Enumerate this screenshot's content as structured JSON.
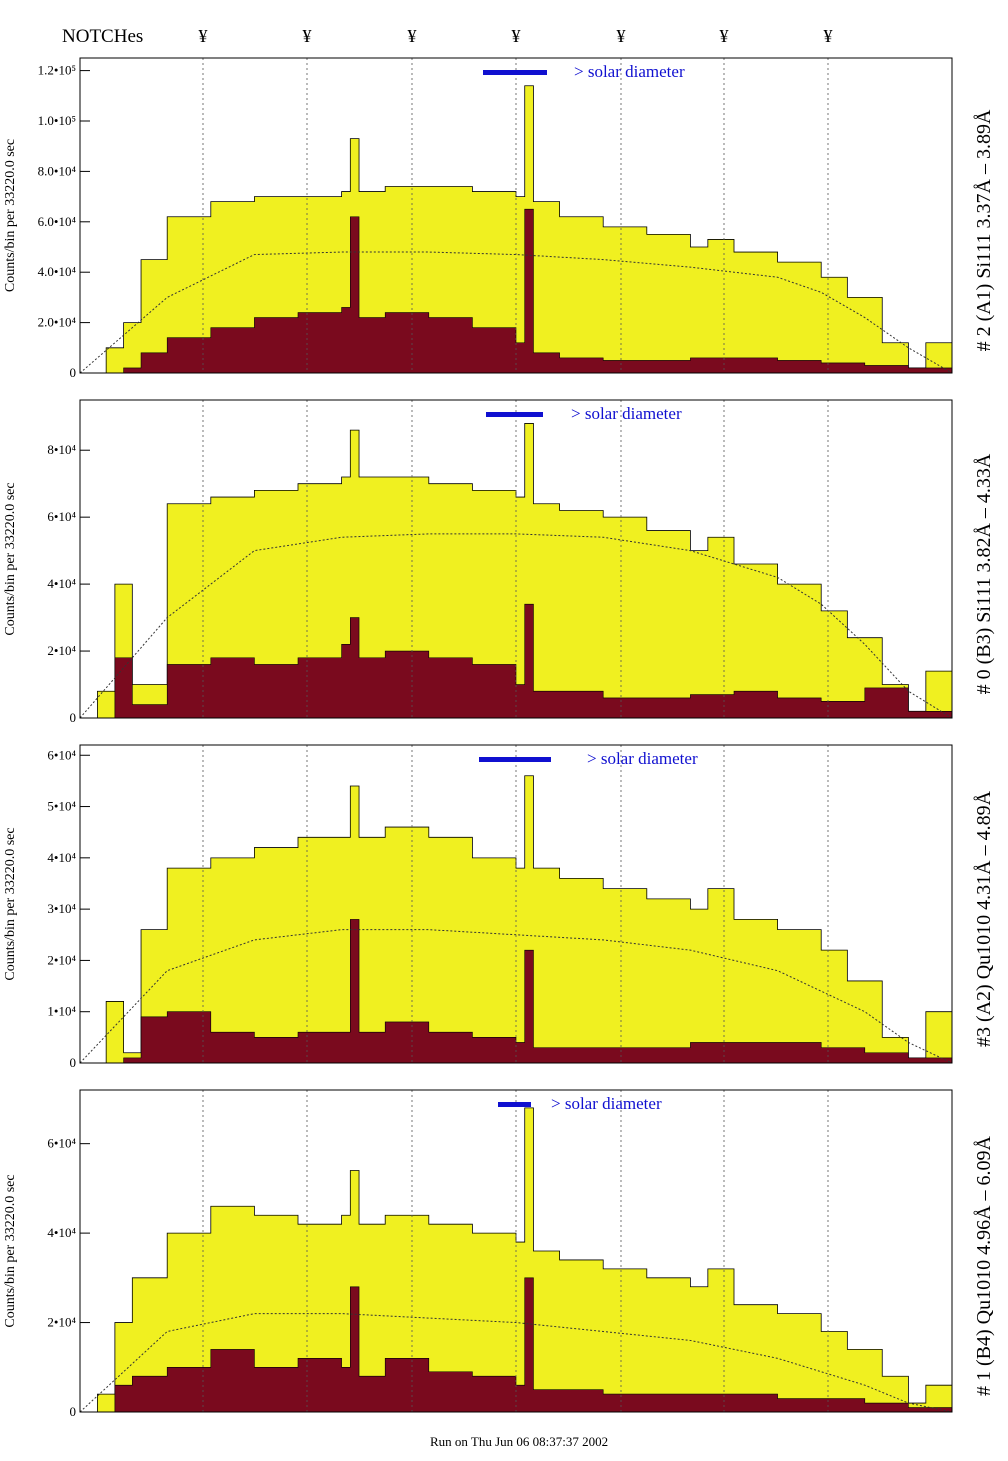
{
  "header": {
    "notch_label": "NOTCHes",
    "notch_symbol": "¥",
    "notch_count": 7
  },
  "footer": {
    "run_text": "Run on Thu Jun 06 08:37:37 2002"
  },
  "colors": {
    "yellow_fill": "#f0f020",
    "dark_fill": "#7a0a1e",
    "solar_bar": "#1010d0",
    "frame": "#000000"
  },
  "chart_data": [
    {
      "type": "area",
      "panel_label": "# 2 (A1) Si111  3.37Å – 3.89Å",
      "ylabel": "Counts/bin per  33220.0 sec",
      "solar_text": "> solar diameter",
      "ylim": [
        0,
        125000
      ],
      "y_ticks": [
        0,
        20000,
        40000,
        60000,
        80000,
        100000,
        120000
      ],
      "y_tick_labels": [
        "0",
        "2.0•10⁴",
        "4.0•10⁴",
        "6.0•10⁴",
        "8.0•10⁴",
        "1.0•10⁵",
        "1.2•10⁵"
      ],
      "series": [
        {
          "name": "total",
          "x": [
            0,
            0.03,
            0.05,
            0.07,
            0.1,
            0.15,
            0.2,
            0.25,
            0.3,
            0.31,
            0.32,
            0.35,
            0.4,
            0.45,
            0.5,
            0.51,
            0.52,
            0.55,
            0.6,
            0.65,
            0.7,
            0.72,
            0.75,
            0.8,
            0.85,
            0.88,
            0.92,
            0.95,
            0.97,
            1.0
          ],
          "values": [
            0,
            10000,
            20000,
            45000,
            62000,
            68000,
            70000,
            70000,
            72000,
            93000,
            72000,
            74000,
            74000,
            72000,
            70000,
            114000,
            68000,
            62000,
            58000,
            55000,
            50000,
            53000,
            48000,
            44000,
            38000,
            30000,
            12000,
            2000,
            12000,
            0
          ]
        },
        {
          "name": "counts",
          "x": [
            0,
            0.05,
            0.07,
            0.1,
            0.15,
            0.2,
            0.25,
            0.3,
            0.31,
            0.32,
            0.35,
            0.4,
            0.45,
            0.5,
            0.51,
            0.52,
            0.55,
            0.6,
            0.65,
            0.7,
            0.75,
            0.8,
            0.85,
            0.9,
            0.95,
            1.0
          ],
          "values": [
            0,
            2000,
            8000,
            14000,
            18000,
            22000,
            24000,
            26000,
            62000,
            22000,
            24000,
            22000,
            18000,
            12000,
            65000,
            8000,
            6000,
            5000,
            5000,
            6000,
            6000,
            5000,
            4000,
            3000,
            2000,
            0
          ]
        },
        {
          "name": "model",
          "x": [
            0,
            0.1,
            0.2,
            0.3,
            0.4,
            0.5,
            0.6,
            0.7,
            0.8,
            0.85,
            0.9,
            0.95,
            1.0
          ],
          "values": [
            0,
            30000,
            47000,
            48000,
            48000,
            47000,
            45000,
            42000,
            38000,
            32000,
            22000,
            10000,
            0
          ]
        }
      ]
    },
    {
      "type": "area",
      "panel_label": "# 0 (B3) Si111  3.82Å – 4.33Å",
      "ylabel": "Counts/bin per  33220.0 sec",
      "solar_text": "> solar diameter",
      "ylim": [
        0,
        95000
      ],
      "y_ticks": [
        0,
        20000,
        40000,
        60000,
        80000
      ],
      "y_tick_labels": [
        "0",
        "2•10⁴",
        "4•10⁴",
        "6•10⁴",
        "8•10⁴"
      ],
      "series": [
        {
          "name": "total",
          "x": [
            0,
            0.02,
            0.04,
            0.06,
            0.1,
            0.15,
            0.2,
            0.25,
            0.3,
            0.31,
            0.32,
            0.35,
            0.4,
            0.45,
            0.5,
            0.51,
            0.52,
            0.55,
            0.6,
            0.65,
            0.7,
            0.72,
            0.75,
            0.8,
            0.85,
            0.88,
            0.92,
            0.95,
            0.97,
            1.0
          ],
          "values": [
            0,
            8000,
            40000,
            10000,
            64000,
            66000,
            68000,
            70000,
            72000,
            86000,
            72000,
            72000,
            70000,
            68000,
            66000,
            88000,
            64000,
            62000,
            60000,
            56000,
            50000,
            54000,
            46000,
            40000,
            32000,
            24000,
            10000,
            2000,
            14000,
            0
          ]
        },
        {
          "name": "counts",
          "x": [
            0,
            0.04,
            0.06,
            0.1,
            0.15,
            0.2,
            0.25,
            0.3,
            0.31,
            0.32,
            0.35,
            0.4,
            0.45,
            0.5,
            0.51,
            0.52,
            0.55,
            0.6,
            0.65,
            0.7,
            0.75,
            0.8,
            0.85,
            0.9,
            0.95,
            1.0
          ],
          "values": [
            0,
            18000,
            4000,
            16000,
            18000,
            16000,
            18000,
            22000,
            30000,
            18000,
            20000,
            18000,
            16000,
            10000,
            34000,
            8000,
            8000,
            6000,
            6000,
            7000,
            8000,
            6000,
            5000,
            9000,
            2000,
            0
          ]
        },
        {
          "name": "model",
          "x": [
            0,
            0.1,
            0.2,
            0.3,
            0.4,
            0.5,
            0.6,
            0.7,
            0.8,
            0.85,
            0.9,
            0.95,
            1.0
          ],
          "values": [
            0,
            30000,
            50000,
            54000,
            55000,
            55000,
            54000,
            50000,
            42000,
            34000,
            22000,
            8000,
            0
          ]
        }
      ]
    },
    {
      "type": "area",
      "panel_label": "#3 (A2) Qu1010  4.31Å – 4.89Å",
      "ylabel": "Counts/bin per  33220.0 sec",
      "solar_text": "> solar diameter",
      "ylim": [
        0,
        62000
      ],
      "y_ticks": [
        0,
        10000,
        20000,
        30000,
        40000,
        50000,
        60000
      ],
      "y_tick_labels": [
        "0",
        "1•10⁴",
        "2•10⁴",
        "3•10⁴",
        "4•10⁴",
        "5•10⁴",
        "6•10⁴"
      ],
      "series": [
        {
          "name": "total",
          "x": [
            0,
            0.03,
            0.05,
            0.07,
            0.1,
            0.15,
            0.2,
            0.25,
            0.3,
            0.31,
            0.32,
            0.35,
            0.4,
            0.45,
            0.5,
            0.51,
            0.52,
            0.55,
            0.6,
            0.65,
            0.7,
            0.72,
            0.75,
            0.8,
            0.85,
            0.88,
            0.92,
            0.95,
            0.97,
            1.0
          ],
          "values": [
            0,
            12000,
            2000,
            26000,
            38000,
            40000,
            42000,
            44000,
            44000,
            54000,
            44000,
            46000,
            44000,
            40000,
            38000,
            56000,
            38000,
            36000,
            34000,
            32000,
            30000,
            34000,
            28000,
            26000,
            22000,
            16000,
            5000,
            1000,
            10000,
            0
          ]
        },
        {
          "name": "counts",
          "x": [
            0,
            0.05,
            0.07,
            0.1,
            0.15,
            0.2,
            0.25,
            0.3,
            0.31,
            0.32,
            0.35,
            0.4,
            0.45,
            0.5,
            0.51,
            0.52,
            0.55,
            0.6,
            0.65,
            0.7,
            0.75,
            0.8,
            0.85,
            0.9,
            0.95,
            1.0
          ],
          "values": [
            0,
            1000,
            9000,
            10000,
            6000,
            5000,
            6000,
            6000,
            28000,
            6000,
            8000,
            6000,
            5000,
            4000,
            22000,
            3000,
            3000,
            3000,
            3000,
            4000,
            4000,
            4000,
            3000,
            2000,
            1000,
            0
          ]
        },
        {
          "name": "model",
          "x": [
            0,
            0.1,
            0.2,
            0.3,
            0.4,
            0.5,
            0.6,
            0.7,
            0.8,
            0.85,
            0.9,
            0.95,
            1.0
          ],
          "values": [
            0,
            18000,
            24000,
            26000,
            26000,
            25000,
            24000,
            22000,
            18000,
            14000,
            10000,
            4000,
            0
          ]
        }
      ]
    },
    {
      "type": "area",
      "panel_label": "# 1 (B4) Qu1010 4.96Å – 6.09Å",
      "ylabel": "Counts/bin per  33220.0 sec",
      "solar_text": "> solar diameter",
      "ylim": [
        0,
        72000
      ],
      "y_ticks": [
        0,
        20000,
        40000,
        60000
      ],
      "y_tick_labels": [
        "0",
        "2•10⁴",
        "4•10⁴",
        "6•10⁴"
      ],
      "series": [
        {
          "name": "total",
          "x": [
            0,
            0.02,
            0.04,
            0.06,
            0.1,
            0.15,
            0.2,
            0.25,
            0.3,
            0.31,
            0.32,
            0.35,
            0.4,
            0.45,
            0.5,
            0.51,
            0.52,
            0.55,
            0.6,
            0.65,
            0.7,
            0.72,
            0.75,
            0.8,
            0.85,
            0.88,
            0.92,
            0.95,
            0.97,
            1.0
          ],
          "values": [
            0,
            4000,
            20000,
            30000,
            40000,
            46000,
            44000,
            42000,
            44000,
            54000,
            42000,
            44000,
            42000,
            40000,
            38000,
            68000,
            36000,
            34000,
            32000,
            30000,
            28000,
            32000,
            24000,
            22000,
            18000,
            14000,
            8000,
            2000,
            6000,
            0
          ]
        },
        {
          "name": "counts",
          "x": [
            0,
            0.04,
            0.06,
            0.1,
            0.15,
            0.2,
            0.25,
            0.3,
            0.31,
            0.32,
            0.35,
            0.4,
            0.45,
            0.5,
            0.51,
            0.52,
            0.55,
            0.6,
            0.65,
            0.7,
            0.75,
            0.8,
            0.85,
            0.9,
            0.95,
            1.0
          ],
          "values": [
            0,
            6000,
            8000,
            10000,
            14000,
            10000,
            12000,
            10000,
            28000,
            8000,
            12000,
            9000,
            8000,
            6000,
            30000,
            5000,
            5000,
            4000,
            4000,
            4000,
            4000,
            3000,
            3000,
            2000,
            1000,
            0
          ]
        },
        {
          "name": "model",
          "x": [
            0,
            0.1,
            0.2,
            0.3,
            0.4,
            0.5,
            0.6,
            0.7,
            0.8,
            0.85,
            0.9,
            0.95,
            1.0
          ],
          "values": [
            0,
            18000,
            22000,
            22000,
            21000,
            20000,
            18000,
            16000,
            12000,
            9000,
            6000,
            2000,
            0
          ]
        }
      ]
    }
  ]
}
